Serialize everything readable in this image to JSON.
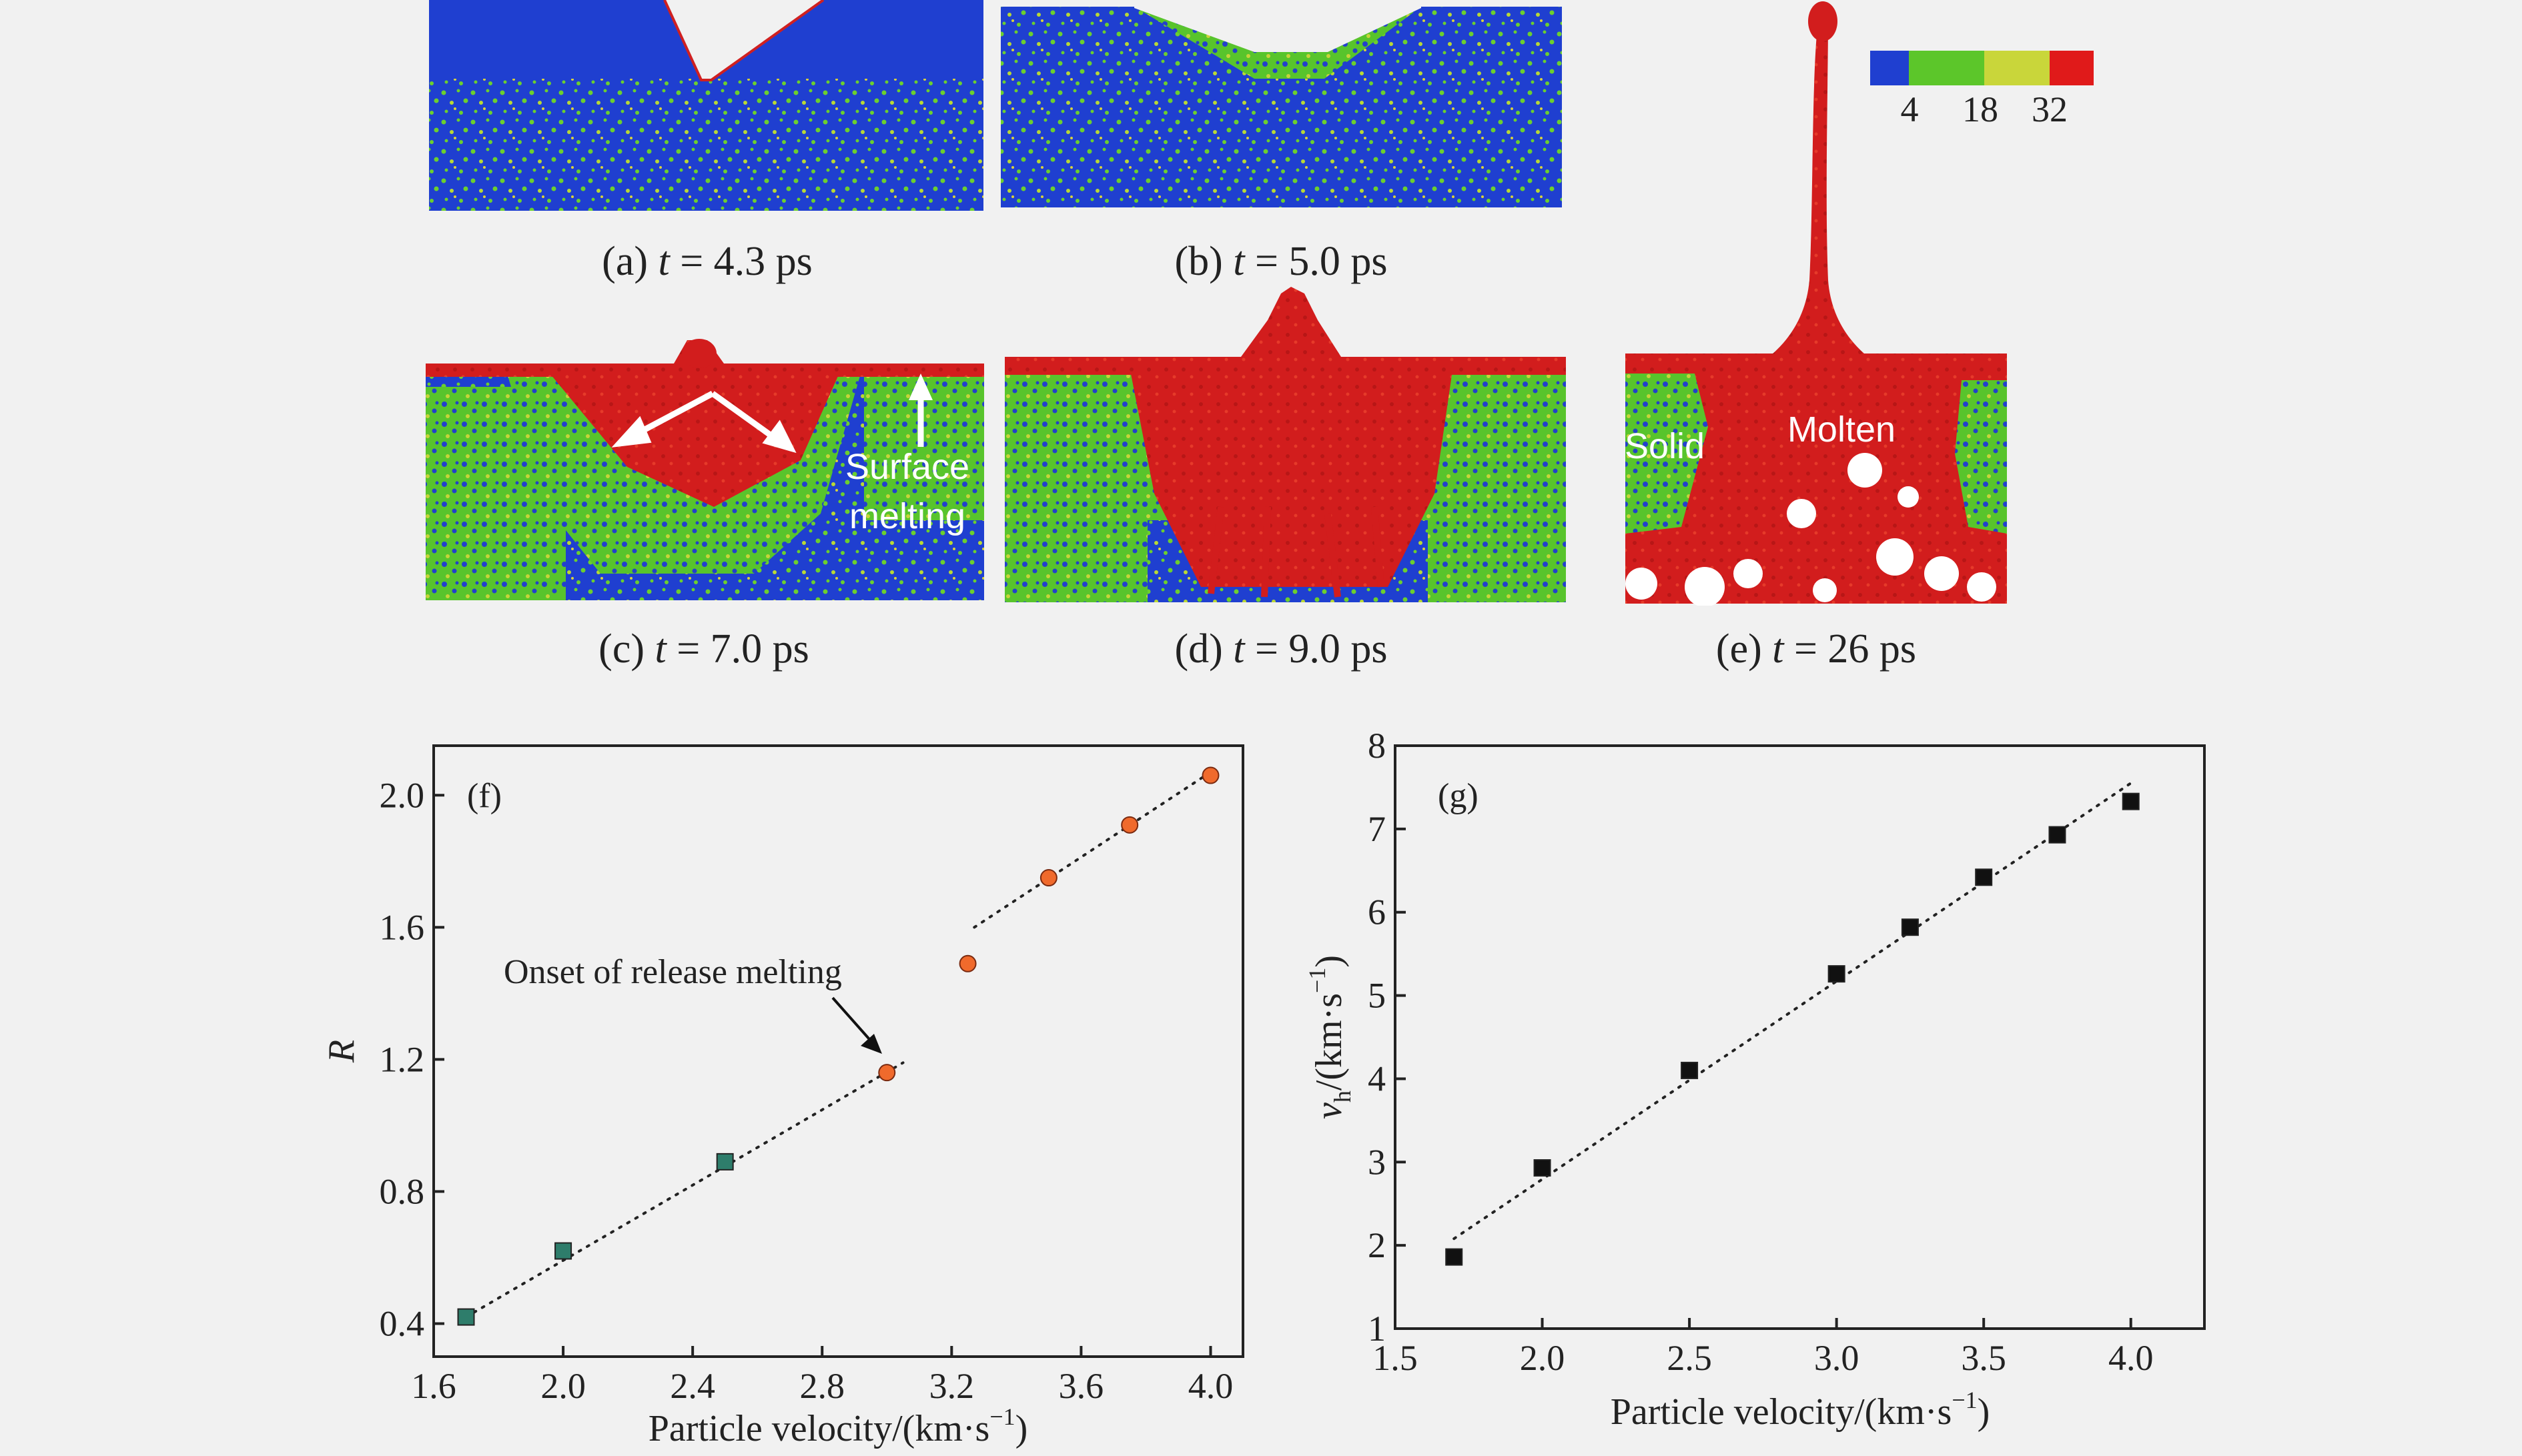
{
  "panels": [
    {
      "id": "a",
      "caption_pre": "(a) ",
      "caption_var": "t",
      "caption_post": " = 4.3 ps"
    },
    {
      "id": "b",
      "caption_pre": "(b) ",
      "caption_var": "t",
      "caption_post": " = 5.0 ps"
    },
    {
      "id": "c",
      "caption_pre": "(c) ",
      "caption_var": "t",
      "caption_post": " = 7.0 ps"
    },
    {
      "id": "d",
      "caption_pre": "(d) ",
      "caption_var": "t",
      "caption_post": "  = 9.0 ps"
    },
    {
      "id": "e",
      "caption_pre": "(e) ",
      "caption_var": "t",
      "caption_post": " = 26 ps"
    }
  ],
  "annotations": {
    "surface_1": "Surface",
    "surface_2": "melting",
    "solid": "Solid",
    "molten": "Molten",
    "onset": "Onset of release melting"
  },
  "colorbar": {
    "colors": [
      "#1f3fd0",
      "#5cc62a",
      "#c9d63a",
      "#e01a1a"
    ],
    "ticks": [
      "4",
      "18",
      "32"
    ]
  },
  "colors": {
    "blue": "#1f3fd0",
    "green": "#5cc62a",
    "red": "#d71e1e",
    "solid_marker": "#2e7d6b",
    "liquid_marker": "#f06a2c",
    "black_marker": "#111111"
  },
  "chart_data": [
    {
      "type": "scatter",
      "panel_label": "(f)",
      "xlabel": "Particle velocity/(km·s",
      "xlabel_sup": "−1",
      "xlabel_end": ")",
      "ylabel": "R",
      "xlim": [
        1.6,
        4.1
      ],
      "ylim": [
        0.3,
        2.15
      ],
      "xticks": [
        "1.6",
        "2.0",
        "2.4",
        "2.8",
        "3.2",
        "3.6",
        "4.0"
      ],
      "yticks": [
        "0.4",
        "0.8",
        "1.2",
        "1.6",
        "2.0"
      ],
      "series": [
        {
          "marker": "square",
          "x": [
            1.7,
            2.0,
            2.5
          ],
          "y": [
            0.42,
            0.62,
            0.89
          ]
        },
        {
          "marker": "circle",
          "x": [
            3.0,
            3.25,
            3.5,
            3.75,
            4.0
          ],
          "y": [
            1.16,
            1.49,
            1.75,
            1.91,
            2.06
          ]
        }
      ],
      "fits": [
        {
          "x": [
            1.7,
            3.05
          ],
          "y": [
            0.42,
            1.19
          ]
        },
        {
          "x": [
            3.27,
            4.0
          ],
          "y": [
            1.6,
            2.07
          ]
        }
      ]
    },
    {
      "type": "scatter",
      "panel_label": "(g)",
      "xlabel": "Particle velocity/(km·s",
      "xlabel_sup": "−1",
      "xlabel_end": ")",
      "ylabel": "v",
      "ylabel_sub": "h",
      "ylabel_rest": "/(km·s",
      "ylabel_sup": "−1",
      "ylabel_end": ")",
      "xlim": [
        1.5,
        4.25
      ],
      "ylim": [
        1,
        8
      ],
      "xticks": [
        "1.5",
        "2.0",
        "2.5",
        "3.0",
        "3.5",
        "4.0"
      ],
      "yticks": [
        "1",
        "2",
        "3",
        "4",
        "5",
        "6",
        "7",
        "8"
      ],
      "series": [
        {
          "marker": "square",
          "x": [
            1.7,
            2.0,
            2.5,
            3.0,
            3.25,
            3.5,
            3.75,
            4.0
          ],
          "y": [
            1.86,
            2.93,
            4.1,
            5.26,
            5.82,
            6.42,
            6.93,
            7.33
          ]
        }
      ],
      "fits": [
        {
          "x": [
            1.7,
            4.0
          ],
          "y": [
            2.08,
            7.55
          ]
        }
      ]
    }
  ]
}
